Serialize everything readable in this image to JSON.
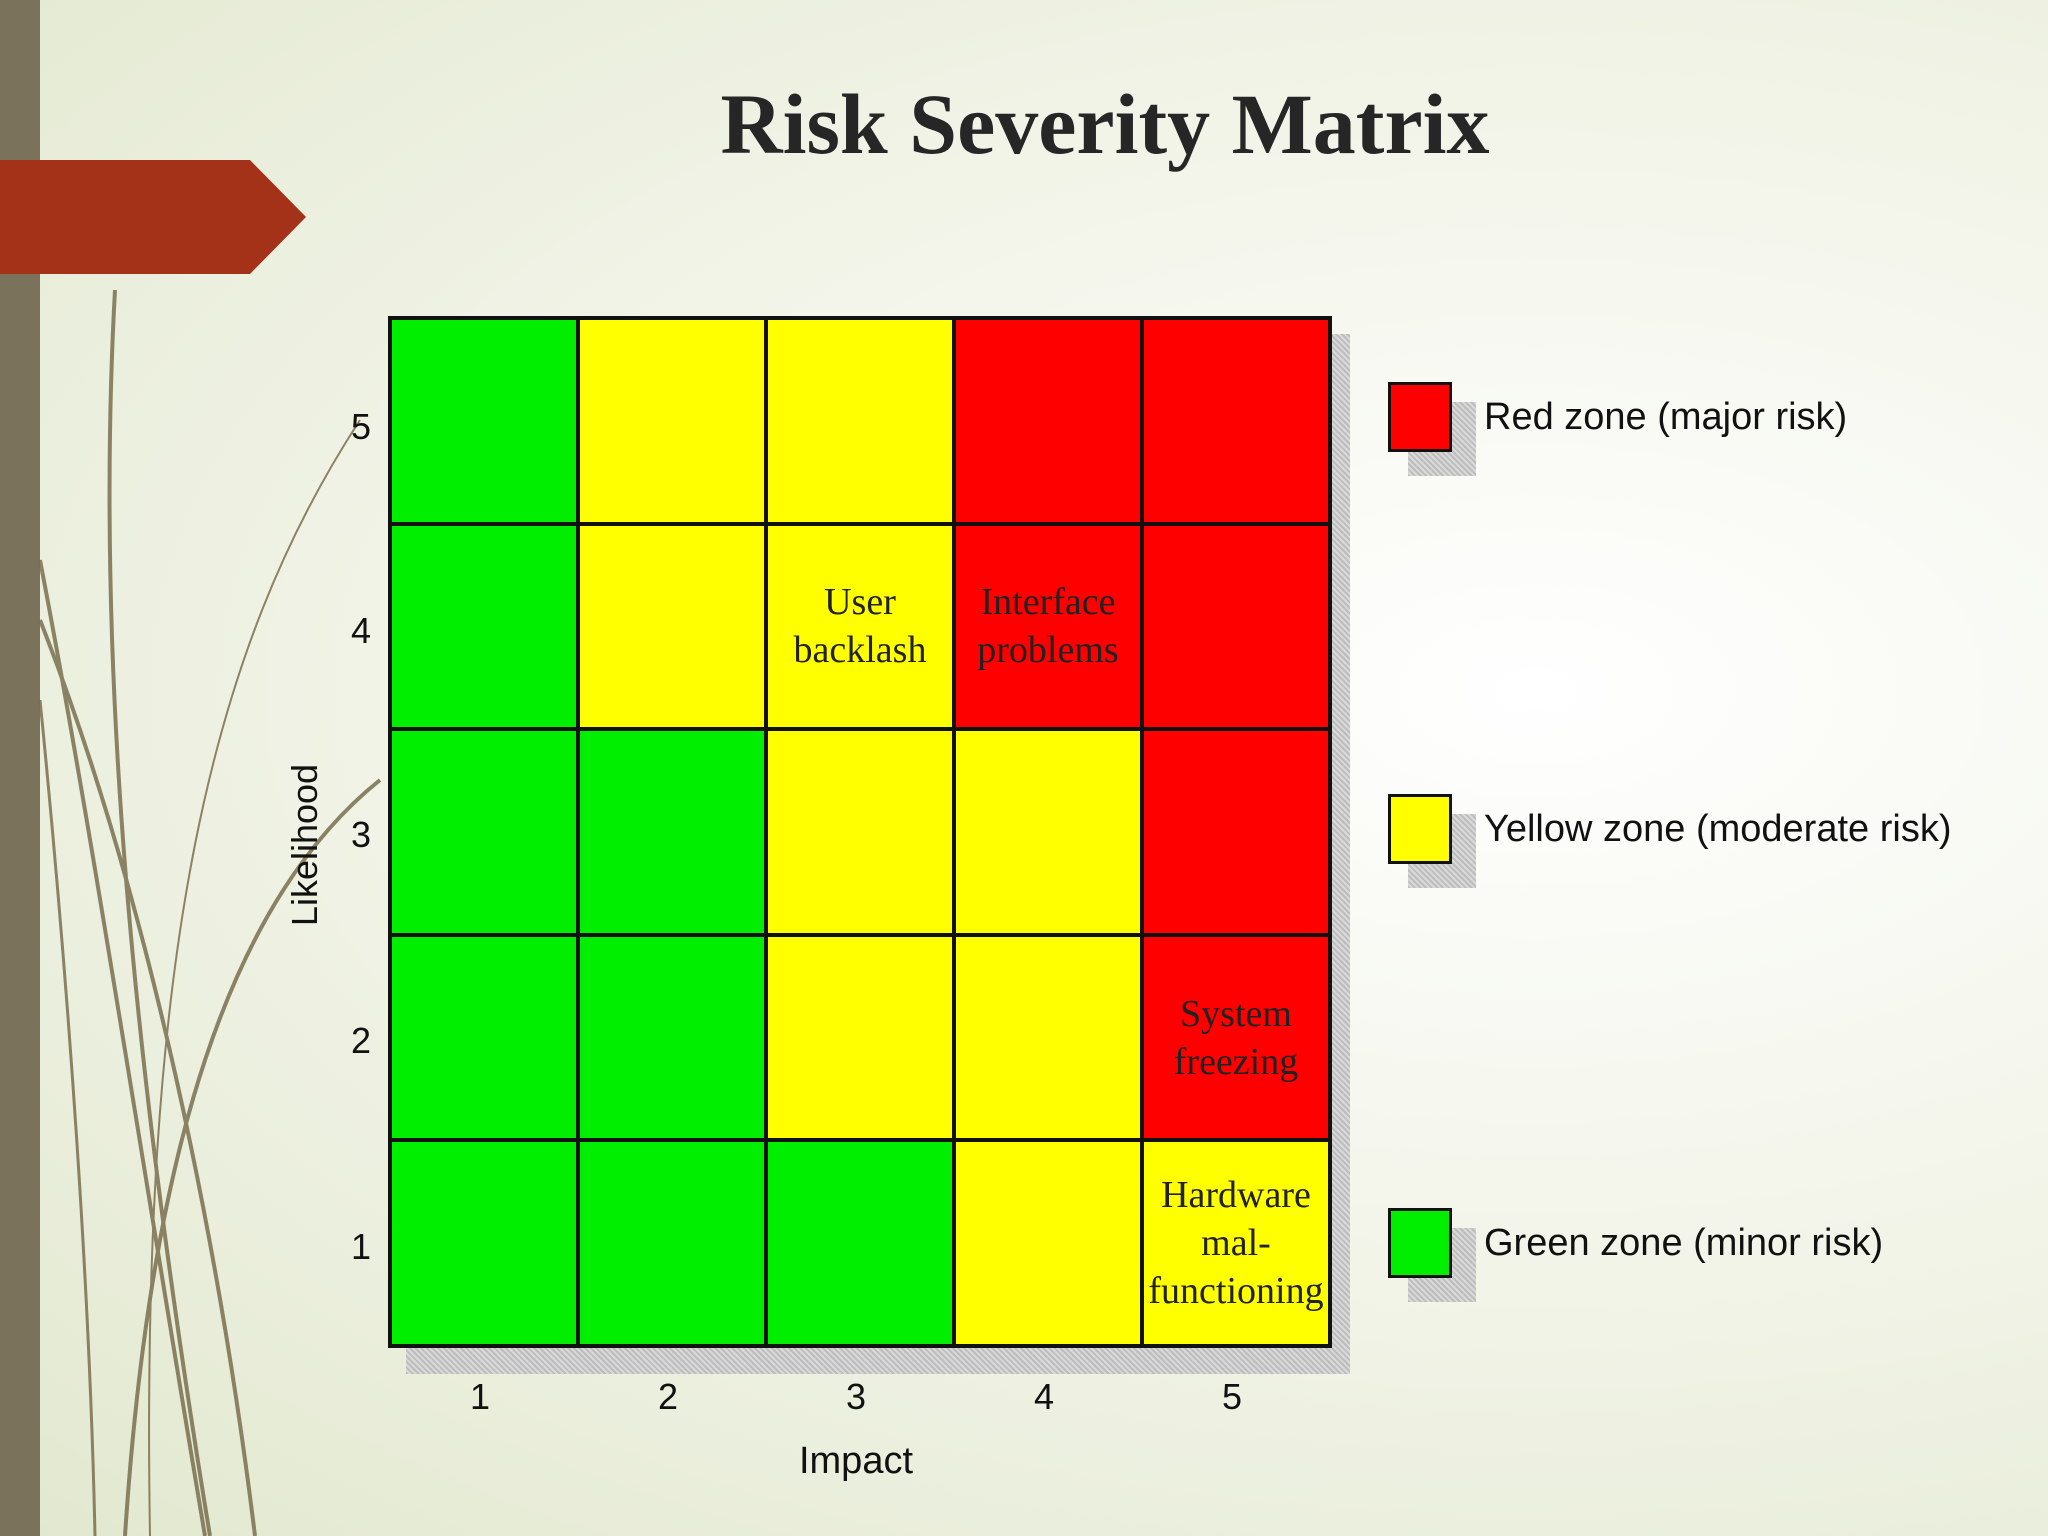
{
  "slide": {
    "title": "Risk Severity Matrix"
  },
  "colors": {
    "red": "#ff0000",
    "yellow": "#ffff00",
    "green": "#00ee00",
    "accent_arrow": "#a33218",
    "side_bar": "#7a725a"
  },
  "matrix": {
    "y_axis_label": "Likelihood",
    "x_axis_label": "Impact",
    "y_ticks": [
      "5",
      "4",
      "3",
      "2",
      "1"
    ],
    "x_ticks": [
      "1",
      "2",
      "3",
      "4",
      "5"
    ],
    "rows": [
      {
        "likelihood": "5",
        "cells": [
          {
            "zone": "green",
            "label": ""
          },
          {
            "zone": "yellow",
            "label": ""
          },
          {
            "zone": "yellow",
            "label": ""
          },
          {
            "zone": "red",
            "label": ""
          },
          {
            "zone": "red",
            "label": ""
          }
        ]
      },
      {
        "likelihood": "4",
        "cells": [
          {
            "zone": "green",
            "label": ""
          },
          {
            "zone": "yellow",
            "label": ""
          },
          {
            "zone": "yellow",
            "label": "User\nbacklash"
          },
          {
            "zone": "red",
            "label": "Interface\nproblems"
          },
          {
            "zone": "red",
            "label": ""
          }
        ]
      },
      {
        "likelihood": "3",
        "cells": [
          {
            "zone": "green",
            "label": ""
          },
          {
            "zone": "green",
            "label": ""
          },
          {
            "zone": "yellow",
            "label": ""
          },
          {
            "zone": "yellow",
            "label": ""
          },
          {
            "zone": "red",
            "label": ""
          }
        ]
      },
      {
        "likelihood": "2",
        "cells": [
          {
            "zone": "green",
            "label": ""
          },
          {
            "zone": "green",
            "label": ""
          },
          {
            "zone": "yellow",
            "label": ""
          },
          {
            "zone": "yellow",
            "label": ""
          },
          {
            "zone": "red",
            "label": "System\nfreezing"
          }
        ]
      },
      {
        "likelihood": "1",
        "cells": [
          {
            "zone": "green",
            "label": ""
          },
          {
            "zone": "green",
            "label": ""
          },
          {
            "zone": "green",
            "label": ""
          },
          {
            "zone": "yellow",
            "label": ""
          },
          {
            "zone": "yellow",
            "label": "Hardware\nmal-\nfunctioning"
          }
        ]
      }
    ]
  },
  "legend": [
    {
      "zone": "red",
      "label": "Red zone (major risk)"
    },
    {
      "zone": "yellow",
      "label": "Yellow zone (moderate risk)"
    },
    {
      "zone": "green",
      "label": "Green zone (minor risk)"
    }
  ]
}
